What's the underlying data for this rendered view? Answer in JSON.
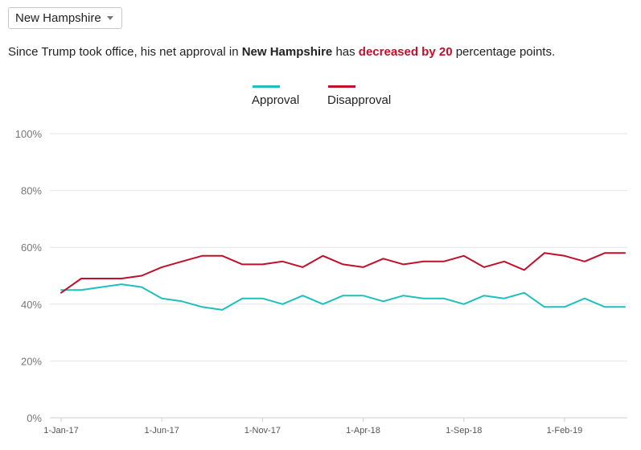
{
  "state_selector": {
    "selected": "New Hampshire"
  },
  "summary": {
    "prefix": "Since Trump took office, his net approval in",
    "state": "New Hampshire",
    "middle": "has",
    "change": "decreased by 20",
    "suffix": "percentage points."
  },
  "colors": {
    "approval": "#1fbfbf",
    "disapproval": "#c0102a",
    "change_text": "#c0102a",
    "grid": "#e6e6e6"
  },
  "chart_data": {
    "type": "line",
    "x": [
      "2017-01",
      "2017-02",
      "2017-03",
      "2017-04",
      "2017-05",
      "2017-06",
      "2017-07",
      "2017-08",
      "2017-09",
      "2017-10",
      "2017-11",
      "2017-12",
      "2018-01",
      "2018-02",
      "2018-03",
      "2018-04",
      "2018-05",
      "2018-06",
      "2018-07",
      "2018-08",
      "2018-09",
      "2018-10",
      "2018-11",
      "2018-12",
      "2019-01",
      "2019-02",
      "2019-03",
      "2019-04",
      "2019-05"
    ],
    "series": [
      {
        "name": "Approval",
        "color": "#1fbfbf",
        "values": [
          45,
          45,
          46,
          47,
          46,
          42,
          41,
          39,
          38,
          42,
          42,
          40,
          43,
          40,
          43,
          43,
          41,
          43,
          42,
          42,
          40,
          43,
          42,
          44,
          39,
          39,
          42,
          39,
          39
        ]
      },
      {
        "name": "Disapproval",
        "color": "#c0102a",
        "values": [
          44,
          49,
          49,
          49,
          50,
          53,
          55,
          57,
          57,
          54,
          54,
          55,
          53,
          57,
          54,
          53,
          56,
          54,
          55,
          55,
          57,
          53,
          55,
          52,
          58,
          57,
          55,
          58,
          58
        ]
      }
    ],
    "x_ticks": [
      {
        "x": "2017-01",
        "label": "1-Jan-17"
      },
      {
        "x": "2017-06",
        "label": "1-Jun-17"
      },
      {
        "x": "2017-11",
        "label": "1-Nov-17"
      },
      {
        "x": "2018-04",
        "label": "1-Apr-18"
      },
      {
        "x": "2018-09",
        "label": "1-Sep-18"
      },
      {
        "x": "2019-02",
        "label": "1-Feb-19"
      }
    ],
    "y_ticks": [
      "0%",
      "20%",
      "40%",
      "60%",
      "80%",
      "100%"
    ],
    "ylim": [
      0,
      100
    ],
    "grid": true,
    "legend_position": "top-center"
  }
}
